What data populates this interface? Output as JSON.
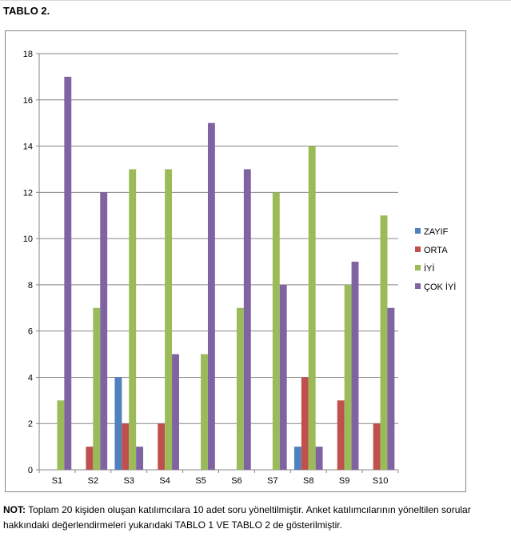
{
  "page": {
    "title": "TABLO 2.",
    "note_label": "NOT:",
    "note_text": " Toplam 20 kişiden oluşan katılımcılara 10 adet soru yöneltilmiştir. Anket katılımcılarının yöneltilen sorular hakkındaki değerlendirmeleri yukarıdaki TABLO 1 VE TABLO 2 de gösterilmiştir."
  },
  "chart_data": {
    "type": "bar",
    "title": "",
    "xlabel": "",
    "ylabel": "",
    "ylim": [
      0,
      18
    ],
    "yticks": [
      0,
      2,
      4,
      6,
      8,
      10,
      12,
      14,
      16,
      18
    ],
    "grid": true,
    "legend_position": "right",
    "categories": [
      "S1",
      "S2",
      "S3",
      "S4",
      "S5",
      "S6",
      "S7",
      "S8",
      "S9",
      "S10"
    ],
    "series": [
      {
        "name": "ZAYIF",
        "color": "#4f81bd",
        "values": [
          0,
          0,
          4,
          0,
          0,
          0,
          0,
          1,
          0,
          0
        ]
      },
      {
        "name": "ORTA",
        "color": "#c0504d",
        "values": [
          0,
          1,
          2,
          2,
          0,
          0,
          0,
          4,
          3,
          2
        ]
      },
      {
        "name": "İYİ",
        "color": "#9bbb59",
        "values": [
          3,
          7,
          13,
          13,
          5,
          7,
          12,
          14,
          8,
          11
        ]
      },
      {
        "name": "ÇOK İYİ",
        "color": "#8064a2",
        "values": [
          17,
          12,
          1,
          5,
          15,
          13,
          8,
          1,
          9,
          7
        ]
      }
    ]
  }
}
